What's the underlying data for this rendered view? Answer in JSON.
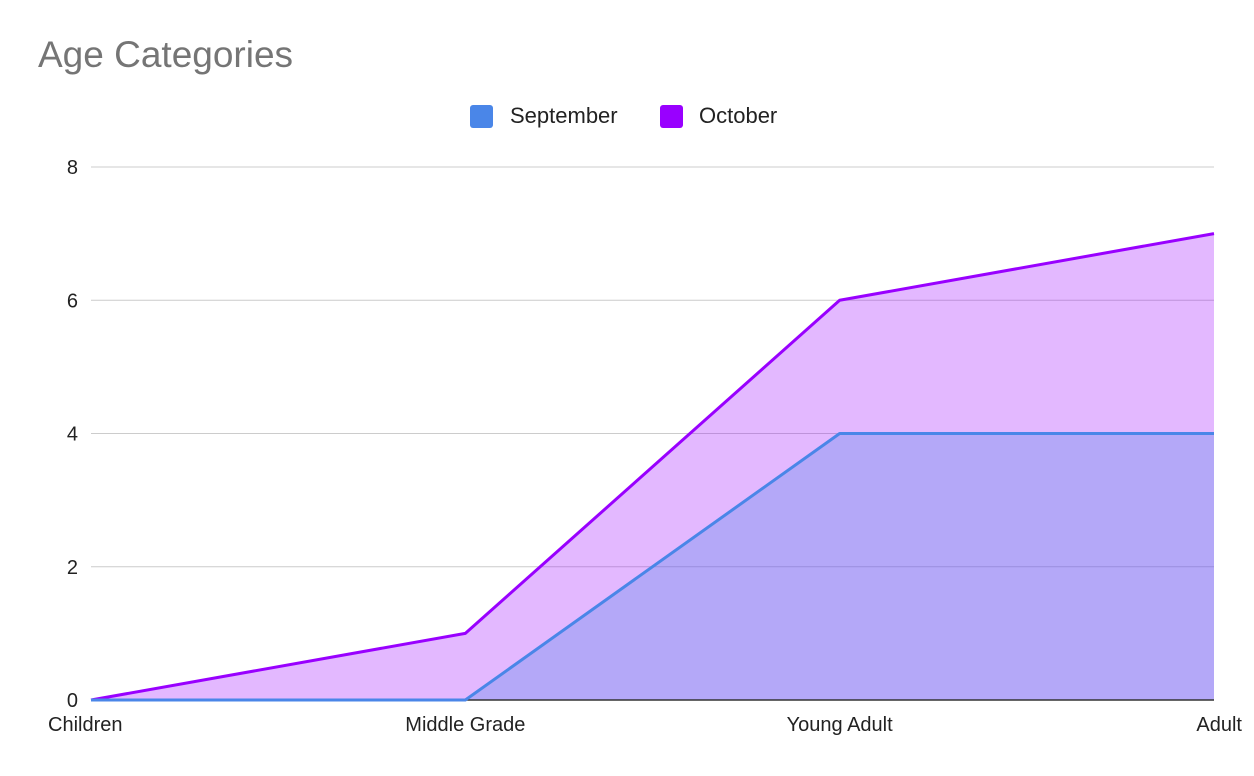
{
  "chart_data": {
    "type": "area",
    "title": "Age Categories",
    "xlabel": "",
    "ylabel": "",
    "categories": [
      "Children",
      "Middle Grade",
      "Young Adult",
      "Adult"
    ],
    "series": [
      {
        "name": "September",
        "values": [
          0,
          0,
          4,
          4
        ],
        "color": "#4a86e8"
      },
      {
        "name": "October",
        "values": [
          0,
          1,
          6,
          7
        ],
        "color": "#9900ff"
      }
    ],
    "ylim": [
      0,
      8
    ],
    "yticks": [
      0,
      2,
      4,
      6,
      8
    ],
    "grid": true,
    "legend_position": "top-center"
  }
}
